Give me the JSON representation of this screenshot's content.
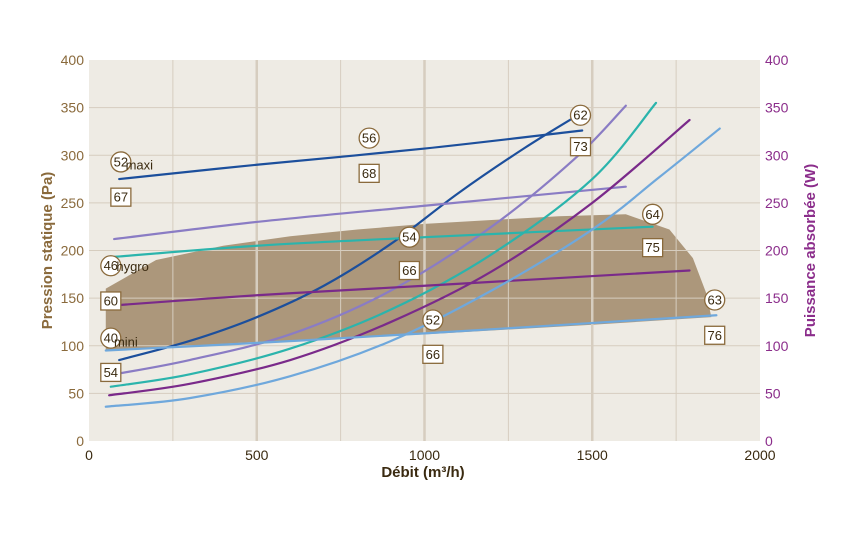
{
  "colors": {
    "plot_bg": "#eeebe4",
    "grid": "#d6cdbf",
    "left_axis": "#8a6a3c",
    "right_axis": "#8b2d8b",
    "shaded_area": "#a08868",
    "annotation_border": "#8a6a3c"
  },
  "chart_data": {
    "type": "line",
    "xlabel": "Débit (m³/h)",
    "ylabel_left": "Pression statique (Pa)",
    "ylabel_right": "Puissance absorbée (W)",
    "xlim": [
      0,
      2000
    ],
    "ylim_left": [
      0,
      400
    ],
    "ylim_right": [
      0,
      400
    ],
    "x_ticks": [
      "0",
      "500",
      "1000",
      "1500",
      "2000"
    ],
    "y_left_ticks": [
      "0",
      "50",
      "100",
      "150",
      "200",
      "250",
      "300",
      "350",
      "400"
    ],
    "y_right_ticks": [
      "0",
      "50",
      "100",
      "150",
      "200",
      "250",
      "300",
      "350",
      "400"
    ],
    "grid": true,
    "shaded_region": [
      [
        50,
        160
      ],
      [
        200,
        190
      ],
      [
        400,
        205
      ],
      [
        600,
        215
      ],
      [
        800,
        222
      ],
      [
        1000,
        228
      ],
      [
        1200,
        232
      ],
      [
        1400,
        236
      ],
      [
        1600,
        238
      ],
      [
        1730,
        222
      ],
      [
        1800,
        192
      ],
      [
        1840,
        155
      ],
      [
        1855,
        130
      ],
      [
        1500,
        122
      ],
      [
        1000,
        112
      ],
      [
        500,
        104
      ],
      [
        50,
        95
      ]
    ],
    "series": [
      {
        "color": "#1c4f9c",
        "values": [
          [
            90,
            275
          ],
          [
            500,
            290
          ],
          [
            1000,
            307
          ],
          [
            1470,
            326
          ]
        ]
      },
      {
        "color": "#1c4f9c",
        "values": [
          [
            90,
            85
          ],
          [
            300,
            105
          ],
          [
            500,
            130
          ],
          [
            700,
            163
          ],
          [
            900,
            207
          ],
          [
            1100,
            260
          ],
          [
            1300,
            308
          ],
          [
            1480,
            347
          ]
        ]
      },
      {
        "color": "#8a7cc4",
        "values": [
          [
            75,
            212
          ],
          [
            500,
            230
          ],
          [
            1000,
            247
          ],
          [
            1600,
            267
          ]
        ]
      },
      {
        "color": "#8a7cc4",
        "values": [
          [
            75,
            70
          ],
          [
            300,
            85
          ],
          [
            600,
            112
          ],
          [
            900,
            158
          ],
          [
            1200,
            225
          ],
          [
            1450,
            297
          ],
          [
            1600,
            352
          ]
        ]
      },
      {
        "color": "#2bb4ac",
        "values": [
          [
            65,
            193
          ],
          [
            500,
            205
          ],
          [
            1000,
            214
          ],
          [
            1680,
            225
          ]
        ]
      },
      {
        "color": "#2bb4ac",
        "values": [
          [
            65,
            57
          ],
          [
            300,
            70
          ],
          [
            600,
            97
          ],
          [
            900,
            138
          ],
          [
            1200,
            196
          ],
          [
            1500,
            275
          ],
          [
            1690,
            355
          ]
        ]
      },
      {
        "color": "#7a2a8a",
        "values": [
          [
            60,
            142
          ],
          [
            500,
            153
          ],
          [
            1000,
            163
          ],
          [
            1790,
            179
          ]
        ]
      },
      {
        "color": "#7a2a8a",
        "values": [
          [
            60,
            48
          ],
          [
            300,
            60
          ],
          [
            600,
            85
          ],
          [
            900,
            125
          ],
          [
            1200,
            178
          ],
          [
            1500,
            250
          ],
          [
            1790,
            337
          ]
        ]
      },
      {
        "color": "#6fa8dc",
        "values": [
          [
            50,
            95
          ],
          [
            500,
            103
          ],
          [
            1000,
            113
          ],
          [
            1870,
            132
          ]
        ]
      },
      {
        "color": "#6fa8dc",
        "values": [
          [
            50,
            36
          ],
          [
            300,
            45
          ],
          [
            600,
            68
          ],
          [
            900,
            105
          ],
          [
            1200,
            158
          ],
          [
            1500,
            222
          ],
          [
            1700,
            277
          ],
          [
            1880,
            328
          ]
        ]
      }
    ],
    "annotations": [
      {
        "text": "52",
        "shape": "circle",
        "x": 95,
        "y": 293
      },
      {
        "text": "maxi",
        "shape": "label",
        "x": 150,
        "y": 290
      },
      {
        "text": "67",
        "shape": "square",
        "x": 95,
        "y": 256
      },
      {
        "text": "56",
        "shape": "circle",
        "x": 835,
        "y": 318
      },
      {
        "text": "68",
        "shape": "square",
        "x": 835,
        "y": 281
      },
      {
        "text": "62",
        "shape": "circle",
        "x": 1465,
        "y": 342
      },
      {
        "text": "73",
        "shape": "square",
        "x": 1465,
        "y": 309
      },
      {
        "text": "46",
        "shape": "circle",
        "x": 65,
        "y": 184
      },
      {
        "text": "hygro",
        "shape": "label",
        "x": 130,
        "y": 183
      },
      {
        "text": "60",
        "shape": "square",
        "x": 65,
        "y": 147
      },
      {
        "text": "40",
        "shape": "circle",
        "x": 65,
        "y": 108
      },
      {
        "text": "mini",
        "shape": "label",
        "x": 110,
        "y": 104
      },
      {
        "text": "54",
        "shape": "square",
        "x": 65,
        "y": 72
      },
      {
        "text": "54",
        "shape": "circle",
        "x": 955,
        "y": 214
      },
      {
        "text": "66",
        "shape": "square",
        "x": 955,
        "y": 179
      },
      {
        "text": "52",
        "shape": "circle",
        "x": 1025,
        "y": 127
      },
      {
        "text": "66",
        "shape": "square",
        "x": 1025,
        "y": 91
      },
      {
        "text": "64",
        "shape": "circle",
        "x": 1680,
        "y": 238
      },
      {
        "text": "75",
        "shape": "square",
        "x": 1680,
        "y": 203
      },
      {
        "text": "63",
        "shape": "circle",
        "x": 1865,
        "y": 148
      },
      {
        "text": "76",
        "shape": "square",
        "x": 1865,
        "y": 111
      }
    ]
  }
}
